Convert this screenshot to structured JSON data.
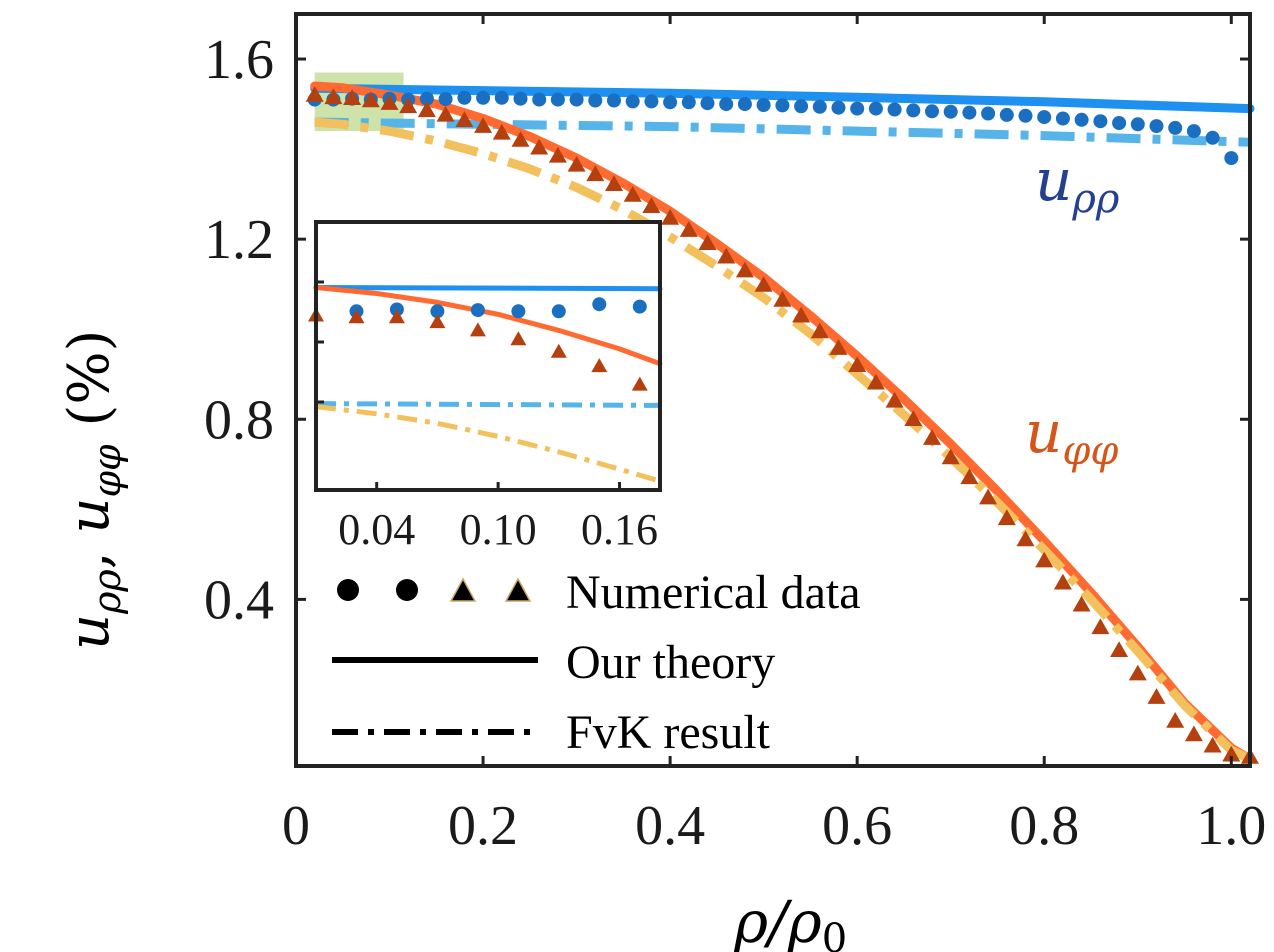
{
  "chart_data": {
    "type": "line",
    "xlabel": "ρ/ρ",
    "xlabel_sub": "0",
    "ylabel": "u  ,  u   (%)",
    "ylabel_parts": [
      "u",
      "ρρ",
      ", ",
      "u",
      "φφ",
      " (%)"
    ],
    "xlim": [
      0,
      1.02
    ],
    "ylim": [
      0.03,
      1.7
    ],
    "xticks": [
      0,
      0.2,
      0.4,
      0.6,
      0.8,
      1.0
    ],
    "xtick_labels": [
      "0",
      "0.2",
      "0.4",
      "0.6",
      "0.8",
      "1.0"
    ],
    "yticks": [
      0.4,
      0.8,
      1.2,
      1.6
    ],
    "ytick_labels": [
      "0.4",
      "0.8",
      "1.2",
      "1.6"
    ],
    "series_labels": [
      {
        "name": "u_rho_rho",
        "base": "u",
        "sub": "ρρ",
        "color": "#24408e"
      },
      {
        "name": "u_phi_phi",
        "base": "u",
        "sub": "φφ",
        "color": "#d4561b"
      }
    ],
    "series": [
      {
        "name": "u_rho_rho theory",
        "style": "solid",
        "color": "#1e90f0",
        "x": [
          0.02,
          0.2,
          0.4,
          0.6,
          0.8,
          1.02
        ],
        "y": [
          1.535,
          1.53,
          1.524,
          1.515,
          1.505,
          1.49
        ]
      },
      {
        "name": "u_rho_rho FvK",
        "style": "dashed",
        "color": "#56b4e9",
        "x": [
          0.02,
          0.2,
          0.4,
          0.6,
          0.8,
          1.02
        ],
        "y": [
          1.46,
          1.455,
          1.45,
          1.44,
          1.43,
          1.415
        ]
      },
      {
        "name": "u_phi_phi theory",
        "style": "solid",
        "color": "#ff6a30",
        "x": [
          0.02,
          0.05,
          0.1,
          0.15,
          0.2,
          0.25,
          0.3,
          0.35,
          0.4,
          0.45,
          0.5,
          0.55,
          0.6,
          0.65,
          0.7,
          0.75,
          0.8,
          0.85,
          0.9,
          0.95,
          1.0,
          1.02
        ],
        "y": [
          1.54,
          1.536,
          1.52,
          1.5,
          1.468,
          1.428,
          1.38,
          1.324,
          1.262,
          1.19,
          1.115,
          1.03,
          0.94,
          0.845,
          0.745,
          0.64,
          0.53,
          0.415,
          0.295,
          0.17,
          0.07,
          0.045
        ]
      },
      {
        "name": "u_phi_phi FvK",
        "style": "dashed",
        "color": "#f2c05c",
        "x": [
          0.02,
          0.05,
          0.1,
          0.15,
          0.2,
          0.25,
          0.3,
          0.35,
          0.4,
          0.45,
          0.5,
          0.55,
          0.6,
          0.65,
          0.7,
          0.75,
          0.8,
          0.85,
          0.9,
          0.95,
          1.0,
          1.02
        ],
        "y": [
          1.46,
          1.455,
          1.44,
          1.418,
          1.39,
          1.356,
          1.315,
          1.265,
          1.205,
          1.14,
          1.07,
          0.99,
          0.9,
          0.81,
          0.715,
          0.615,
          0.51,
          0.4,
          0.285,
          0.165,
          0.065,
          0.045
        ]
      },
      {
        "name": "u_rho_rho numerical",
        "style": "circle",
        "color": "#1a6fc0",
        "x": [
          0.02,
          0.04,
          0.06,
          0.08,
          0.1,
          0.12,
          0.14,
          0.16,
          0.18,
          0.2,
          0.22,
          0.24,
          0.26,
          0.28,
          0.3,
          0.32,
          0.34,
          0.36,
          0.38,
          0.4,
          0.42,
          0.44,
          0.46,
          0.48,
          0.5,
          0.52,
          0.54,
          0.56,
          0.58,
          0.6,
          0.62,
          0.64,
          0.66,
          0.68,
          0.7,
          0.72,
          0.74,
          0.76,
          0.78,
          0.8,
          0.82,
          0.84,
          0.86,
          0.88,
          0.9,
          0.92,
          0.94,
          0.96,
          0.98,
          1.0
        ],
        "y": [
          1.51,
          1.51,
          1.512,
          1.51,
          1.512,
          1.51,
          1.512,
          1.511,
          1.514,
          1.514,
          1.514,
          1.512,
          1.51,
          1.51,
          1.51,
          1.508,
          1.508,
          1.506,
          1.506,
          1.504,
          1.504,
          1.502,
          1.5,
          1.5,
          1.498,
          1.497,
          1.495,
          1.494,
          1.492,
          1.49,
          1.49,
          1.488,
          1.486,
          1.484,
          1.483,
          1.481,
          1.479,
          1.476,
          1.474,
          1.471,
          1.468,
          1.465,
          1.462,
          1.458,
          1.455,
          1.451,
          1.447,
          1.44,
          1.425,
          1.38
        ]
      },
      {
        "name": "u_phi_phi numerical",
        "style": "triangle",
        "color": "#b5400f",
        "x": [
          0.02,
          0.04,
          0.06,
          0.08,
          0.1,
          0.12,
          0.14,
          0.16,
          0.18,
          0.2,
          0.22,
          0.24,
          0.26,
          0.28,
          0.3,
          0.32,
          0.34,
          0.36,
          0.38,
          0.4,
          0.42,
          0.44,
          0.46,
          0.48,
          0.5,
          0.52,
          0.54,
          0.56,
          0.58,
          0.6,
          0.62,
          0.64,
          0.66,
          0.68,
          0.7,
          0.72,
          0.74,
          0.76,
          0.78,
          0.8,
          0.82,
          0.84,
          0.86,
          0.88,
          0.9,
          0.92,
          0.94,
          0.96,
          0.98,
          1.0,
          1.02
        ],
        "y": [
          1.52,
          1.515,
          1.513,
          1.508,
          1.502,
          1.495,
          1.486,
          1.476,
          1.464,
          1.451,
          1.436,
          1.42,
          1.403,
          1.385,
          1.365,
          1.344,
          1.322,
          1.298,
          1.273,
          1.247,
          1.22,
          1.191,
          1.161,
          1.13,
          1.098,
          1.065,
          1.03,
          0.995,
          0.958,
          0.92,
          0.881,
          0.841,
          0.8,
          0.758,
          0.715,
          0.671,
          0.626,
          0.58,
          0.533,
          0.486,
          0.437,
          0.388,
          0.338,
          0.287,
          0.235,
          0.183,
          0.13,
          0.1,
          0.075,
          0.055,
          0.05
        ]
      }
    ],
    "highlight_box": {
      "x": [
        0.02,
        0.115
      ],
      "y": [
        1.44,
        1.57
      ],
      "color": "#bcd98e"
    },
    "inset": {
      "xlim": [
        0.01,
        0.18
      ],
      "ylim": [
        0.7,
        1.15
      ],
      "xticks": [
        0.04,
        0.1,
        0.16
      ],
      "xtick_labels": [
        "0.04",
        "0.10",
        "0.16"
      ],
      "series": [
        {
          "name": "u_rho_rho theory",
          "style": "solid",
          "color": "#1e90f0",
          "x": [
            0.01,
            0.18
          ],
          "y": [
            1.04,
            1.038
          ]
        },
        {
          "name": "u_phi_phi theory",
          "style": "solid",
          "color": "#ff6a30",
          "x": [
            0.01,
            0.04,
            0.07,
            0.1,
            0.13,
            0.16,
            0.18
          ],
          "y": [
            1.04,
            1.03,
            1.015,
            0.995,
            0.968,
            0.937,
            0.912
          ]
        },
        {
          "name": "u_rho_rho FvK",
          "style": "dashed",
          "color": "#56b4e9",
          "x": [
            0.01,
            0.18
          ],
          "y": [
            0.845,
            0.842
          ]
        },
        {
          "name": "u_phi_phi FvK",
          "style": "dashed",
          "color": "#f2c05c",
          "x": [
            0.01,
            0.04,
            0.07,
            0.1,
            0.13,
            0.16,
            0.18
          ],
          "y": [
            0.84,
            0.828,
            0.812,
            0.79,
            0.764,
            0.735,
            0.715
          ]
        },
        {
          "name": "u_rho_rho numerical",
          "style": "circle",
          "color": "#1a6fc0",
          "x": [
            0.03,
            0.05,
            0.07,
            0.09,
            0.11,
            0.13,
            0.15,
            0.17
          ],
          "y": [
            1.0,
            1.003,
            1.0,
            1.002,
            1.0,
            1.0,
            1.012,
            1.008
          ]
        },
        {
          "name": "u_phi_phi numerical",
          "style": "triangle",
          "color": "#b5400f",
          "x": [
            0.01,
            0.03,
            0.05,
            0.07,
            0.09,
            0.11,
            0.13,
            0.15,
            0.17
          ],
          "y": [
            0.993,
            0.99,
            0.99,
            0.982,
            0.968,
            0.953,
            0.932,
            0.908,
            0.877
          ]
        }
      ]
    },
    "legend": {
      "position": "bottom-left",
      "entries": [
        {
          "label": "Numerical data",
          "marker": "dots-triangles"
        },
        {
          "label": "Our theory",
          "marker": "solid-line"
        },
        {
          "label": "FvK result",
          "marker": "dashed-line"
        }
      ]
    }
  }
}
